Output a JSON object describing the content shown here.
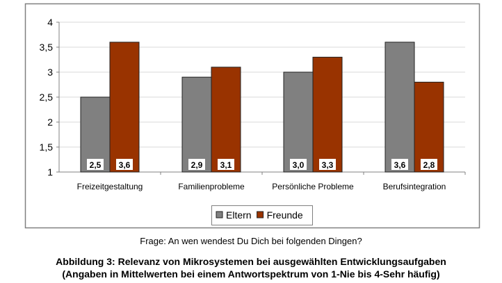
{
  "chart_data": {
    "type": "bar",
    "categories": [
      "Freizeitgestaltung",
      "Familienprobleme",
      "Persönliche Probleme",
      "Berufsintegration"
    ],
    "series": [
      {
        "name": "Eltern",
        "values": [
          2.5,
          2.9,
          3.0,
          3.6
        ],
        "labels": [
          "2,5",
          "2,9",
          "3,0",
          "3,6"
        ],
        "color": "#808080"
      },
      {
        "name": "Freunde",
        "values": [
          3.6,
          3.1,
          3.3,
          2.8
        ],
        "labels": [
          "3,6",
          "3,1",
          "3,3",
          "2,8"
        ],
        "color": "#993300"
      }
    ],
    "ylim": [
      1,
      4
    ],
    "yticks": [
      1,
      1.5,
      2,
      2.5,
      3,
      3.5,
      4
    ],
    "ytick_labels": [
      "1",
      "1,5",
      "2",
      "2,5",
      "3",
      "3,5",
      "4"
    ],
    "grid": true,
    "legend": "bottom",
    "xlabel": "",
    "ylabel": ""
  },
  "caption": {
    "question": "Frage: An wen wendest Du Dich bei folgenden Dingen?",
    "title_line1": "Abbildung 3: Relevanz von Mikrosystemen bei ausgewählten Entwicklungsaufgaben",
    "title_line2": "(Angaben in Mittelwerten bei einem Antwortspektrum von 1-Nie bis 4-Sehr häufig)"
  }
}
